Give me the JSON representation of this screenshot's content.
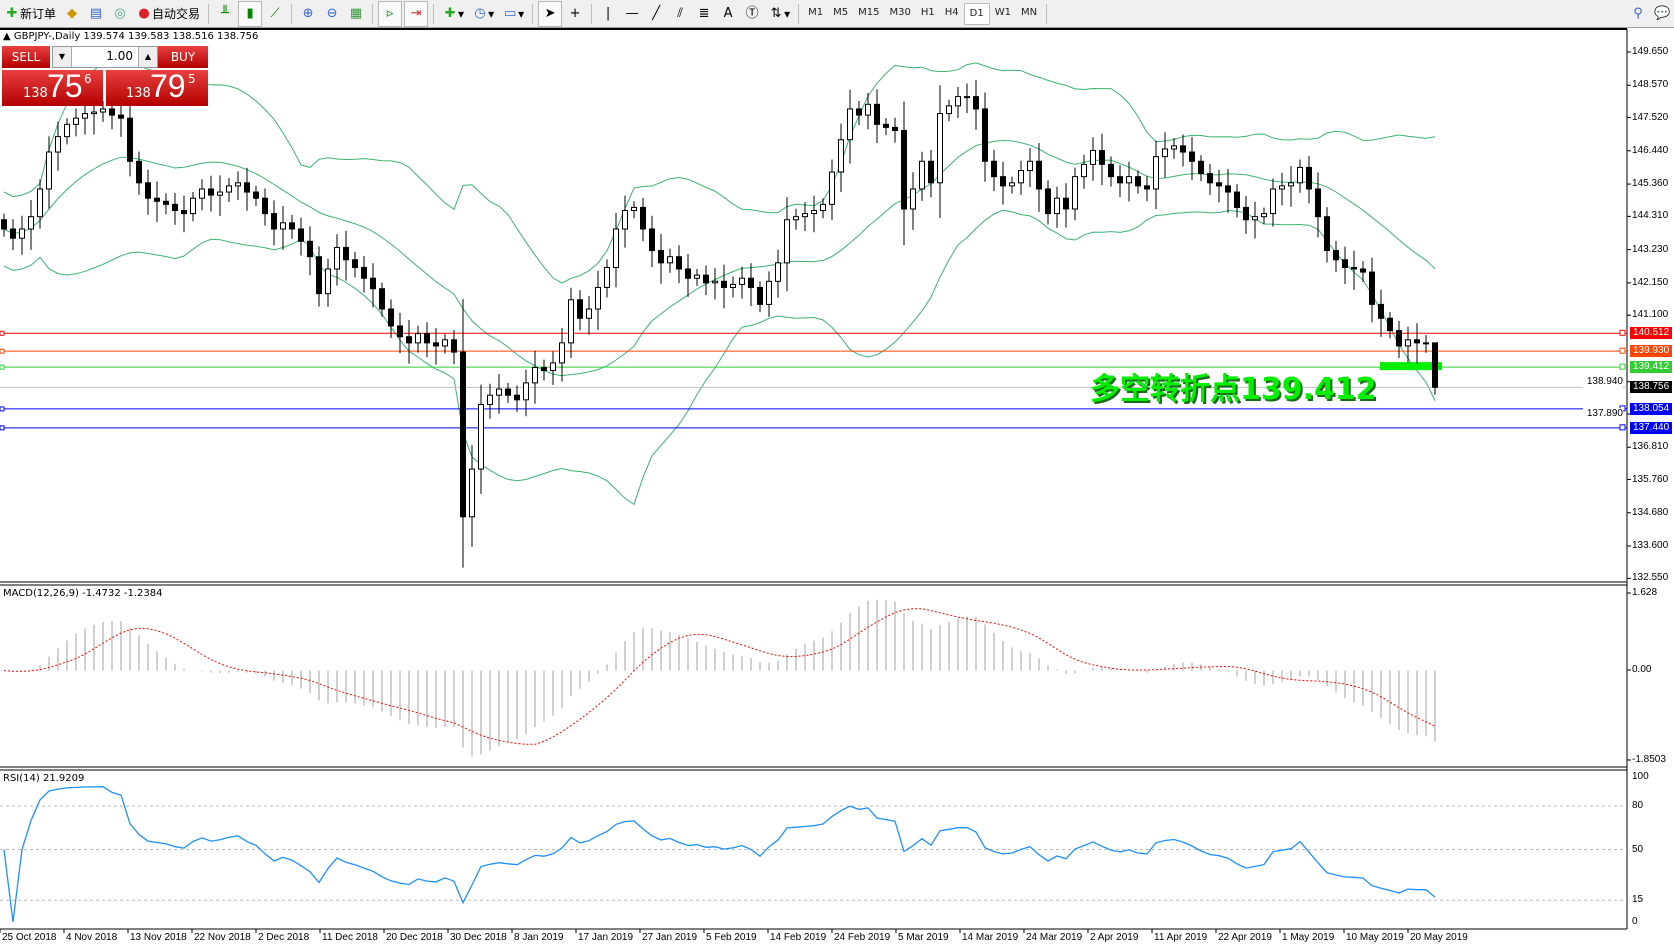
{
  "toolbar": {
    "new_order": "新订单",
    "auto_trading": "自动交易",
    "timeframes": [
      "M1",
      "M5",
      "M15",
      "M30",
      "H1",
      "H4",
      "D1",
      "W1",
      "MN"
    ],
    "active_timeframe": "D1",
    "text_tool": "A"
  },
  "chart": {
    "header": "GBPJPY-,Daily  139.574 139.583 138.516 138.756",
    "trade_panel": {
      "sell_label": "SELL",
      "buy_label": "BUY",
      "lots": "1.00",
      "sell_big_prefix": "138",
      "sell_big": "75",
      "sell_sup": "6",
      "buy_big_prefix": "138",
      "buy_big": "79",
      "buy_sup": "5"
    },
    "annotation": "多空转折点139.412",
    "colors": {
      "bullish_body": "#ffffff",
      "bearish_body": "#000000",
      "bollinger": "#3cb371",
      "macd_hist": "#c0c0c0",
      "macd_signal": "#ff0000",
      "rsi": "#1e90ff",
      "pivot": "#00f000"
    }
  },
  "chart_data": [
    {
      "type": "candlestick",
      "symbol": "GBPJPY",
      "period": "Daily",
      "ylim": [
        132.55,
        150.1
      ],
      "y_ticks": [
        "149.650",
        "148.570",
        "147.520",
        "146.440",
        "145.360",
        "144.310",
        "143.230",
        "142.150",
        "141.100",
        "138.940",
        "137.890",
        "136.810",
        "135.760",
        "134.680",
        "133.600",
        "132.550"
      ],
      "x_ticks": [
        "25 Oct 2018",
        "4 Nov 2018",
        "13 Nov 2018",
        "22 Nov 2018",
        "2 Dec 2018",
        "11 Dec 2018",
        "20 Dec 2018",
        "30 Dec 2018",
        "8 Jan 2019",
        "17 Jan 2019",
        "27 Jan 2019",
        "5 Feb 2019",
        "14 Feb 2019",
        "24 Feb 2019",
        "5 Mar 2019",
        "14 Mar 2019",
        "24 Mar 2019",
        "2 Apr 2019",
        "11 Apr 2019",
        "22 Apr 2019",
        "1 May 2019",
        "10 May 2019",
        "20 May 2019"
      ],
      "closes": [
        143.9,
        143.6,
        143.9,
        144.3,
        145.2,
        146.4,
        146.9,
        147.3,
        147.5,
        147.65,
        147.7,
        147.8,
        147.6,
        147.5,
        146.1,
        145.4,
        144.9,
        144.8,
        144.7,
        144.5,
        144.4,
        144.9,
        145.2,
        145.0,
        145.1,
        145.3,
        145.4,
        145.1,
        144.9,
        144.4,
        143.9,
        144.1,
        143.9,
        143.5,
        143.0,
        141.8,
        142.6,
        143.3,
        142.9,
        142.65,
        142.3,
        141.96,
        141.3,
        140.75,
        140.4,
        140.2,
        140.5,
        140.2,
        140.1,
        140.3,
        139.9,
        134.55,
        136.1,
        138.2,
        138.5,
        138.7,
        138.5,
        138.35,
        138.9,
        139.4,
        139.3,
        139.55,
        140.2,
        141.6,
        141.0,
        141.3,
        142.0,
        142.65,
        143.9,
        144.5,
        144.6,
        143.9,
        143.2,
        142.8,
        143.0,
        142.6,
        142.3,
        142.4,
        142.15,
        142.2,
        142.0,
        142.1,
        142.3,
        142.0,
        141.45,
        142.2,
        142.8,
        144.2,
        144.3,
        144.4,
        144.5,
        144.7,
        145.75,
        146.8,
        147.8,
        147.6,
        147.95,
        147.3,
        147.2,
        147.1,
        144.55,
        145.2,
        146.1,
        145.4,
        147.65,
        147.9,
        148.2,
        148.2,
        147.8,
        146.1,
        145.6,
        145.3,
        145.4,
        145.8,
        146.1,
        145.2,
        144.4,
        144.9,
        144.55,
        145.6,
        146.0,
        146.45,
        146.0,
        145.6,
        145.4,
        145.6,
        145.3,
        145.2,
        146.25,
        146.5,
        146.6,
        146.4,
        146.1,
        145.7,
        145.4,
        145.3,
        145.1,
        144.6,
        144.2,
        144.3,
        144.4,
        145.2,
        145.3,
        145.4,
        145.9,
        145.2,
        144.3,
        143.2,
        142.9,
        142.65,
        142.6,
        142.5,
        141.45,
        141.0,
        140.6,
        140.1,
        140.3,
        140.2,
        140.2,
        138.756
      ],
      "last_bar": {
        "open": "139.574",
        "high": "139.583",
        "low": "138.516",
        "close": "138.756"
      },
      "indicators": [
        "Bollinger Bands"
      ],
      "horizontal_lines": [
        {
          "price": "140.512",
          "color": "#ff0000"
        },
        {
          "price": "139.930",
          "color": "#ff4500"
        },
        {
          "price": "139.412",
          "color": "#32cd32"
        },
        {
          "price": "138.756",
          "color": "#c0c0c0",
          "bid": true
        },
        {
          "price": "138.054",
          "color": "#0000ff"
        },
        {
          "price": "137.440",
          "color": "#0000ff"
        }
      ]
    },
    {
      "type": "bar",
      "title": "MACD(12,26,9) -1.4732 -1.2384",
      "ylim": [
        -1.8503,
        1.628
      ],
      "y_ticks": [
        "1.628",
        "0.00",
        "-1.8503"
      ]
    },
    {
      "type": "line",
      "title": "RSI(14) 21.9209",
      "ylim": [
        0,
        100
      ],
      "y_ticks": [
        "100",
        "80",
        "50",
        "15",
        "0"
      ],
      "levels": [
        80,
        50,
        15
      ]
    }
  ]
}
